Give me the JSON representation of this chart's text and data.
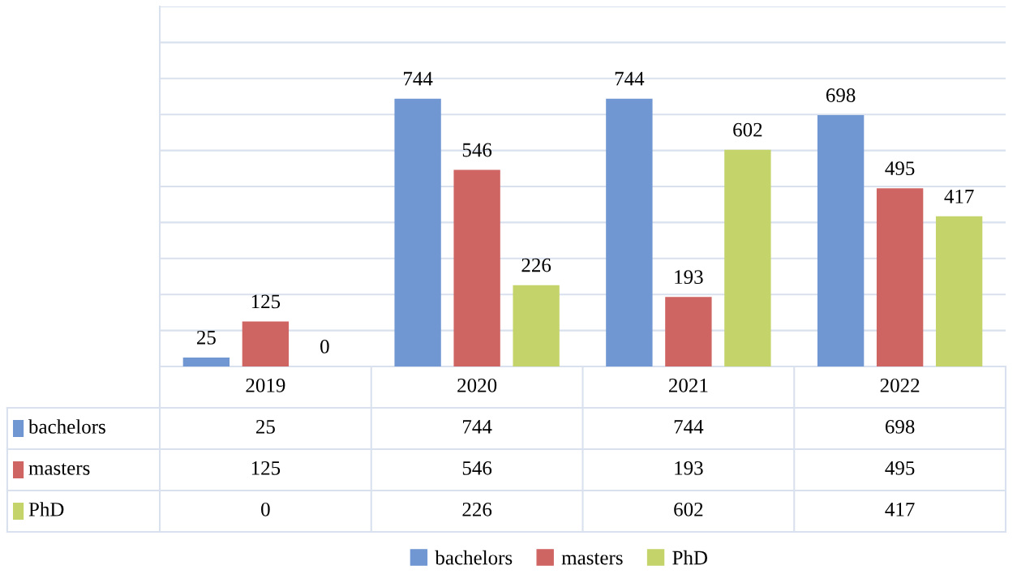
{
  "chart_data": {
    "type": "bar",
    "categories": [
      "2019",
      "2020",
      "2021",
      "2022"
    ],
    "series": [
      {
        "name": "bachelors",
        "color": "#7097d2",
        "values": [
          25,
          744,
          744,
          698
        ]
      },
      {
        "name": "masters",
        "color": "#cf6563",
        "values": [
          125,
          546,
          193,
          495
        ]
      },
      {
        "name": "PhD",
        "color": "#c4d46a",
        "values": [
          0,
          226,
          602,
          417
        ]
      }
    ],
    "ylim": [
      0,
      1000
    ],
    "yticks": [
      {
        "value": 0,
        "label": null
      },
      {
        "value": 100,
        "label": null
      },
      {
        "value": 200,
        "label": null
      },
      {
        "value": 300,
        "label": null
      },
      {
        "value": 400,
        "label": null
      },
      {
        "value": 500,
        "label": null
      },
      {
        "value": 600,
        "label": null
      },
      {
        "value": 700,
        "label": null
      },
      {
        "value": 800,
        "label": null
      },
      {
        "value": 900,
        "label": null
      },
      {
        "value": 1000,
        "label": null
      }
    ],
    "annotations": [
      "25",
      "744",
      "744",
      "698",
      "125",
      "546",
      "193",
      "495",
      "0",
      "226",
      "602",
      "417"
    ],
    "tick_labels": false,
    "grid": "y",
    "data_labels": true,
    "legend": "bottom"
  }
}
